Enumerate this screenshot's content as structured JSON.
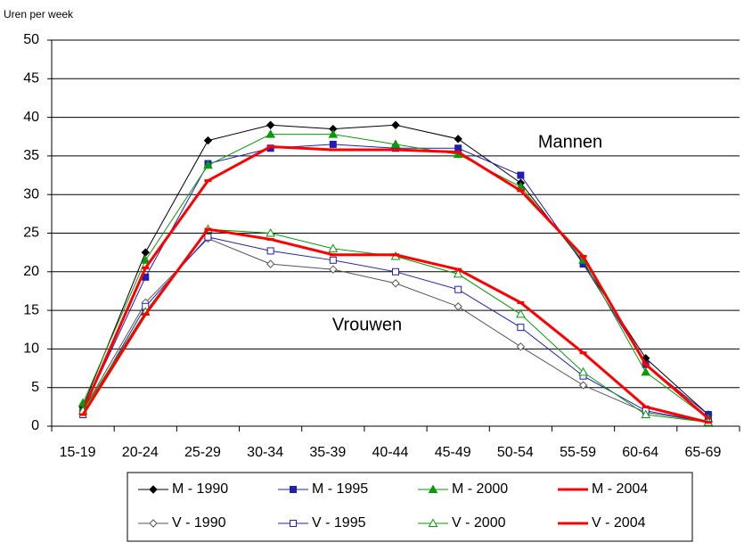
{
  "chart_data": {
    "type": "line",
    "y_label": "Uren per week",
    "annotations": [
      "Mannen",
      "Vrouwen"
    ],
    "categories": [
      "15-19",
      "20-24",
      "25-29",
      "30-34",
      "35-39",
      "40-44",
      "45-49",
      "50-54",
      "55-59",
      "60-64",
      "65-69"
    ],
    "ylim": [
      0,
      50
    ],
    "yticks": [
      0,
      5,
      10,
      15,
      20,
      25,
      30,
      35,
      40,
      45,
      50
    ],
    "grid": true,
    "legend": "bottom",
    "series": [
      {
        "name": "M - 1990",
        "color": "#000000",
        "marker": "diamond",
        "hollow": false,
        "line_width": 1,
        "values": [
          2.5,
          22.5,
          37,
          39,
          38.5,
          39,
          37.2,
          31.5,
          21.2,
          8.8,
          1.5
        ]
      },
      {
        "name": "M - 1995",
        "color": "#1f1fb4",
        "marker": "square",
        "hollow": false,
        "line_width": 1,
        "values": [
          2,
          19.3,
          34,
          36,
          36.5,
          36,
          36,
          32.5,
          21,
          8,
          1.5
        ]
      },
      {
        "name": "M - 2000",
        "color": "#0a9a0a",
        "marker": "triangle",
        "hollow": false,
        "line_width": 1,
        "values": [
          3,
          21.5,
          33.8,
          37.8,
          37.8,
          36.5,
          35.2,
          31,
          21.5,
          7,
          1
        ]
      },
      {
        "name": "M - 2004",
        "color": "#ff0000",
        "marker": "dash",
        "hollow": false,
        "line_width": 3,
        "values": [
          2,
          20.5,
          31.8,
          36.2,
          35.8,
          35.8,
          35.5,
          30.5,
          22,
          8,
          1
        ]
      },
      {
        "name": "V - 1990",
        "color": "#555555",
        "marker": "diamond",
        "hollow": true,
        "line_width": 1,
        "values": [
          2,
          16,
          24.3,
          21,
          20.3,
          18.5,
          15.5,
          10.3,
          5.3,
          1.8,
          0.5
        ]
      },
      {
        "name": "V - 1995",
        "color": "#1f1fb4",
        "marker": "square",
        "hollow": true,
        "line_width": 1,
        "values": [
          1.5,
          15.5,
          24.5,
          22.7,
          21.5,
          20,
          17.7,
          12.8,
          6.5,
          2,
          0.5
        ]
      },
      {
        "name": "V - 2000",
        "color": "#0a9a0a",
        "marker": "triangle",
        "hollow": true,
        "line_width": 1,
        "values": [
          2,
          14.8,
          25.5,
          25,
          23,
          22,
          19.7,
          14.5,
          7,
          1.5,
          0.5
        ]
      },
      {
        "name": "V - 2004",
        "color": "#ff0000",
        "marker": "dash",
        "hollow": true,
        "line_width": 3,
        "values": [
          1.5,
          14.5,
          25.5,
          24.2,
          22.2,
          22.2,
          20.3,
          16,
          9.5,
          2.5,
          0.5
        ]
      }
    ]
  }
}
